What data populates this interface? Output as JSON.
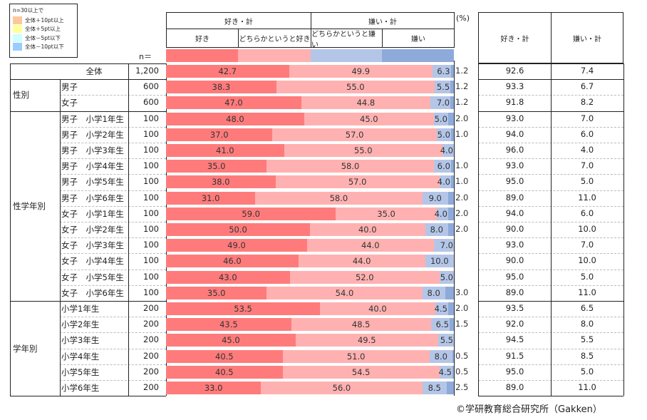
{
  "legend": {
    "title": "n=30以上で",
    "items": [
      {
        "label": "全体＋10pt以上",
        "color": "#fcc89b"
      },
      {
        "label": "全体＋5pt以上",
        "color": "#ffff99"
      },
      {
        "label": "全体－5pt以下",
        "color": "#ccffff"
      },
      {
        "label": "全体－10pt以下",
        "color": "#99ccff"
      }
    ]
  },
  "header": {
    "group_like": "好き・計",
    "group_dislike": "嫌い・計",
    "sub": [
      "好き",
      "どちらかというと好き",
      "どちらかというと嫌い",
      "嫌い"
    ],
    "n_label": "n＝",
    "unit": "(%)",
    "right_like": "好き・計",
    "right_dislike": "嫌い・計"
  },
  "colors": {
    "like": "#ff7b7b",
    "somewhat_like": "#ffb1b1",
    "somewhat_dislike": "#b4c6e7",
    "dislike": "#8eaadb"
  },
  "groups": [
    {
      "label": "",
      "rows": [
        0
      ]
    },
    {
      "label": "性別",
      "rows": [
        1,
        2
      ]
    },
    {
      "label": "性学年別",
      "rows": [
        3,
        4,
        5,
        6,
        7,
        8,
        9,
        10,
        11,
        12,
        13,
        14
      ]
    },
    {
      "label": "学年別",
      "rows": [
        15,
        16,
        17,
        18,
        19,
        20
      ]
    }
  ],
  "chart_data": {
    "type": "bar",
    "title": "",
    "xlabel": "",
    "ylabel": "(%)",
    "ylim": [
      0,
      100
    ],
    "series_names": [
      "好き",
      "どちらかというと好き",
      "どちらかというと嫌い",
      "嫌い"
    ],
    "rows": [
      {
        "label": "全体",
        "n": "1,200",
        "values": [
          42.7,
          49.9,
          6.3,
          1.2
        ],
        "labels": [
          "42.7",
          "49.9",
          "6.3",
          "1.2"
        ],
        "like_total": "92.6",
        "dislike_total": "7.4"
      },
      {
        "label": "男子",
        "n": "600",
        "values": [
          38.3,
          55.0,
          5.5,
          1.2
        ],
        "labels": [
          "38.3",
          "55.0",
          "5.5",
          "1.2"
        ],
        "like_total": "93.3",
        "dislike_total": "6.7"
      },
      {
        "label": "女子",
        "n": "600",
        "values": [
          47.0,
          44.8,
          7.0,
          1.2
        ],
        "labels": [
          "47.0",
          "44.8",
          "7.0",
          "1.2"
        ],
        "like_total": "91.8",
        "dislike_total": "8.2"
      },
      {
        "label": "男子　小学1年生",
        "n": "100",
        "values": [
          48.0,
          45.0,
          5.0,
          2.0
        ],
        "labels": [
          "48.0",
          "45.0",
          "5.0",
          "2.0"
        ],
        "like_total": "93.0",
        "dislike_total": "7.0"
      },
      {
        "label": "男子　小学2年生",
        "n": "100",
        "values": [
          37.0,
          57.0,
          5.0,
          1.0
        ],
        "labels": [
          "37.0",
          "57.0",
          "5.0",
          "1.0"
        ],
        "like_total": "94.0",
        "dislike_total": "6.0"
      },
      {
        "label": "男子　小学3年生",
        "n": "100",
        "values": [
          41.0,
          55.0,
          4.0,
          0
        ],
        "labels": [
          "41.0",
          "55.0",
          "4.0",
          ""
        ],
        "like_total": "96.0",
        "dislike_total": "4.0"
      },
      {
        "label": "男子　小学4年生",
        "n": "100",
        "values": [
          35.0,
          58.0,
          6.0,
          1.0
        ],
        "labels": [
          "35.0",
          "58.0",
          "6.0",
          "1.0"
        ],
        "like_total": "93.0",
        "dislike_total": "7.0"
      },
      {
        "label": "男子　小学5年生",
        "n": "100",
        "values": [
          38.0,
          57.0,
          4.0,
          1.0
        ],
        "labels": [
          "38.0",
          "57.0",
          "4.0",
          "1.0"
        ],
        "like_total": "95.0",
        "dislike_total": "5.0"
      },
      {
        "label": "男子　小学6年生",
        "n": "100",
        "values": [
          31.0,
          58.0,
          9.0,
          2.0
        ],
        "labels": [
          "31.0",
          "58.0",
          "9.0",
          "2.0"
        ],
        "like_total": "89.0",
        "dislike_total": "11.0"
      },
      {
        "label": "女子　小学1年生",
        "n": "100",
        "values": [
          59.0,
          35.0,
          4.0,
          2.0
        ],
        "labels": [
          "59.0",
          "35.0",
          "4.0",
          "2.0"
        ],
        "like_total": "94.0",
        "dislike_total": "6.0"
      },
      {
        "label": "女子　小学2年生",
        "n": "100",
        "values": [
          50.0,
          40.0,
          8.0,
          2.0
        ],
        "labels": [
          "50.0",
          "40.0",
          "8.0",
          "2.0"
        ],
        "like_total": "90.0",
        "dislike_total": "10.0"
      },
      {
        "label": "女子　小学3年生",
        "n": "100",
        "values": [
          49.0,
          44.0,
          7.0,
          0
        ],
        "labels": [
          "49.0",
          "44.0",
          "7.0",
          ""
        ],
        "like_total": "93.0",
        "dislike_total": "7.0"
      },
      {
        "label": "女子　小学4年生",
        "n": "100",
        "values": [
          46.0,
          44.0,
          10.0,
          0
        ],
        "labels": [
          "46.0",
          "44.0",
          "10.0",
          ""
        ],
        "like_total": "90.0",
        "dislike_total": "10.0"
      },
      {
        "label": "女子　小学5年生",
        "n": "100",
        "values": [
          43.0,
          52.0,
          5.0,
          0
        ],
        "labels": [
          "43.0",
          "52.0",
          "5.0",
          ""
        ],
        "like_total": "95.0",
        "dislike_total": "5.0"
      },
      {
        "label": "女子　小学6年生",
        "n": "100",
        "values": [
          35.0,
          54.0,
          8.0,
          3.0
        ],
        "labels": [
          "35.0",
          "54.0",
          "8.0",
          "3.0"
        ],
        "like_total": "89.0",
        "dislike_total": "11.0"
      },
      {
        "label": "小学1年生",
        "n": "200",
        "values": [
          53.5,
          40.0,
          4.5,
          2.0
        ],
        "labels": [
          "53.5",
          "40.0",
          "4.5",
          "2.0"
        ],
        "like_total": "93.5",
        "dislike_total": "6.5"
      },
      {
        "label": "小学2年生",
        "n": "200",
        "values": [
          43.5,
          48.5,
          6.5,
          1.5
        ],
        "labels": [
          "43.5",
          "48.5",
          "6.5",
          "1.5"
        ],
        "like_total": "92.0",
        "dislike_total": "8.0"
      },
      {
        "label": "小学3年生",
        "n": "200",
        "values": [
          45.0,
          49.5,
          5.5,
          0
        ],
        "labels": [
          "45.0",
          "49.5",
          "5.5",
          ""
        ],
        "like_total": "94.5",
        "dislike_total": "5.5"
      },
      {
        "label": "小学4年生",
        "n": "200",
        "values": [
          40.5,
          51.0,
          8.0,
          0.5
        ],
        "labels": [
          "40.5",
          "51.0",
          "8.0",
          "0.5"
        ],
        "like_total": "91.5",
        "dislike_total": "8.5"
      },
      {
        "label": "小学5年生",
        "n": "200",
        "values": [
          40.5,
          54.5,
          4.5,
          0.5
        ],
        "labels": [
          "40.5",
          "54.5",
          "4.5",
          "0.5"
        ],
        "like_total": "95.0",
        "dislike_total": "5.0"
      },
      {
        "label": "小学6年生",
        "n": "200",
        "values": [
          33.0,
          56.0,
          8.5,
          2.5
        ],
        "labels": [
          "33.0",
          "56.0",
          "8.5",
          "2.5"
        ],
        "like_total": "89.0",
        "dislike_total": "11.0"
      }
    ]
  },
  "footer": {
    "copyright": "©学研教育総合研究所（Gakken）"
  }
}
